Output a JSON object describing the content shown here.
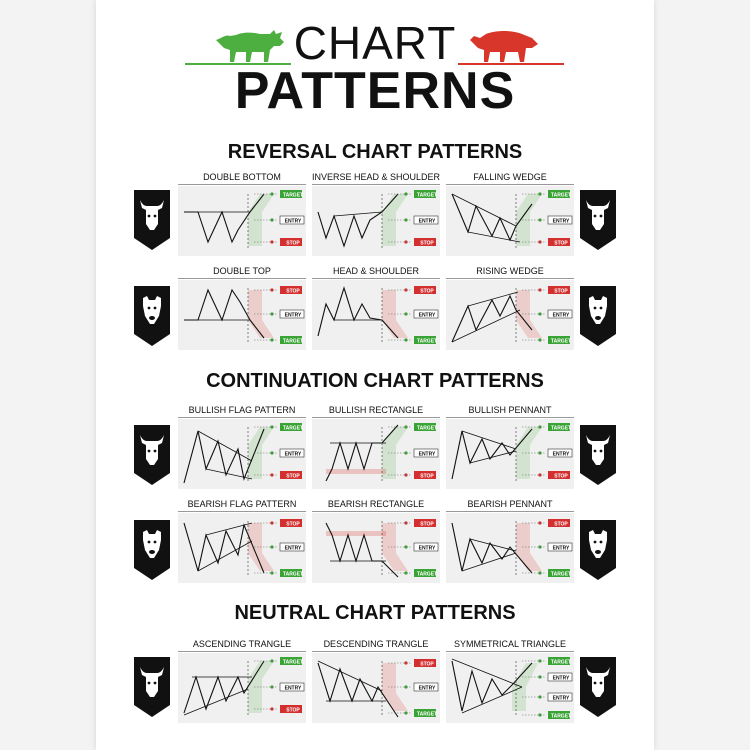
{
  "header": {
    "title_line1": "CHART",
    "title_line2": "PATTERNS"
  },
  "colors": {
    "bull": "#4caf3f",
    "bear": "#d9362b",
    "target": "#3aa335",
    "stop": "#d32f2f",
    "entry_bg": "#ffffff",
    "panel_bg": "#f0f0f0"
  },
  "sections": {
    "reversal": "REVERSAL CHART PATTERNS",
    "continuation": "CONTINUATION CHART PATTERNS",
    "neutral": "NEUTRAL CHART PATTERNS"
  },
  "badge_labels": {
    "target": "TARGET",
    "entry": "ENTRY",
    "stop": "STOP"
  },
  "side_icons": {
    "bull": "bull-head-icon",
    "bear": "bear-head-icon"
  },
  "panels": {
    "double_bottom": "DOUBLE BOTTOM",
    "inverse_head_shoulder": "INVERSE HEAD & SHOULDER",
    "falling_wedge": "FALLING WEDGE",
    "double_top": "DOUBLE TOP",
    "head_shoulder": "HEAD & SHOULDER",
    "rising_wedge": "RISING WEDGE",
    "bullish_flag": "BULLISH FLAG PATTERN",
    "bullish_rectangle": "BULLISH RECTANGLE",
    "bullish_pennant": "BULLISH PENNANT",
    "bearish_flag": "BEARISH FLAG PATTERN",
    "bearish_rectangle": "BEARISH RECTANGLE",
    "bearish_pennant": "BEARISH PENNANT",
    "ascending_triangle": "ASCENDING TRANGLE",
    "descending_triangle": "DESCENDING TRANGLE",
    "symmetrical_triangle": "SYMMETRICAL TRIANGLE"
  }
}
